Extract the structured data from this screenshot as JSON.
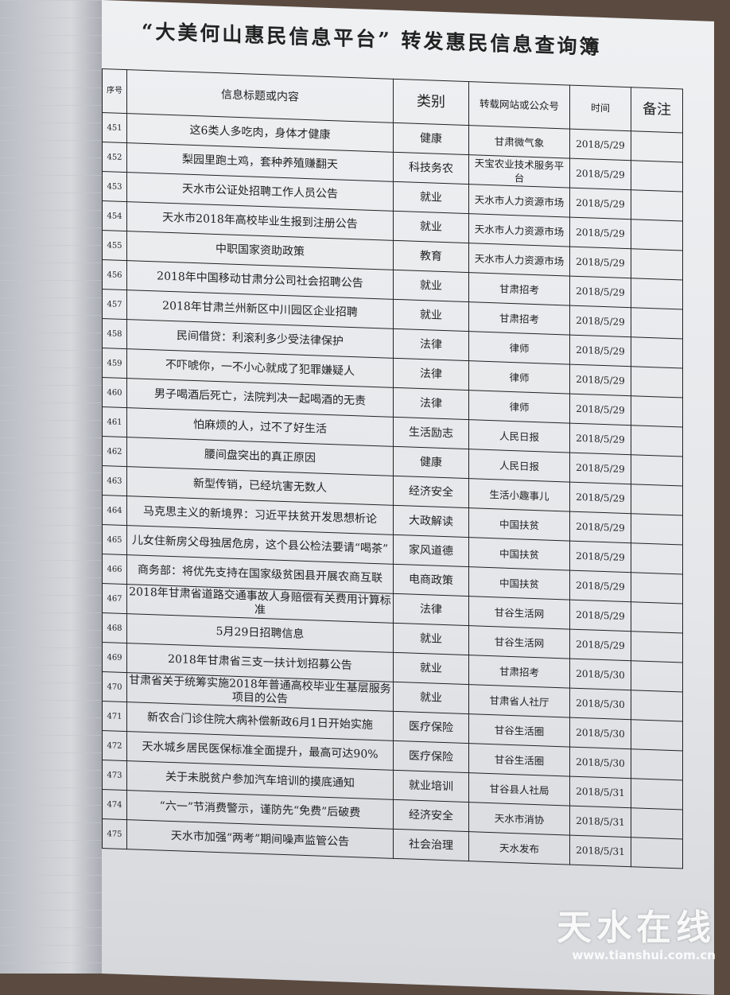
{
  "title": "“大美何山惠民信息平台” 转发惠民信息查询簿",
  "headers": {
    "no": "序号",
    "title": "信息标题或内容",
    "category": "类别",
    "source": "转载网站或公众号",
    "date": "时间",
    "note": "备注"
  },
  "rows": [
    {
      "no": "451",
      "title": "这6类人多吃肉，身体才健康",
      "category": "健康",
      "source": "甘肃微气象",
      "date": "2018/5/29",
      "note": ""
    },
    {
      "no": "452",
      "title": "梨园里跑土鸡，套种养殖赚翻天",
      "category": "科技务农",
      "source": "天宝农业技术服务平台",
      "date": "2018/5/29",
      "note": ""
    },
    {
      "no": "453",
      "title": "天水市公证处招聘工作人员公告",
      "category": "就业",
      "source": "天水市人力资源市场",
      "date": "2018/5/29",
      "note": ""
    },
    {
      "no": "454",
      "title": "天水市2018年高校毕业生报到注册公告",
      "category": "就业",
      "source": "天水市人力资源市场",
      "date": "2018/5/29",
      "note": ""
    },
    {
      "no": "455",
      "title": "中职国家资助政策",
      "category": "教育",
      "source": "天水市人力资源市场",
      "date": "2018/5/29",
      "note": ""
    },
    {
      "no": "456",
      "title": "2018年中国移动甘肃分公司社会招聘公告",
      "category": "就业",
      "source": "甘肃招考",
      "date": "2018/5/29",
      "note": ""
    },
    {
      "no": "457",
      "title": "2018年甘肃兰州新区中川园区企业招聘",
      "category": "就业",
      "source": "甘肃招考",
      "date": "2018/5/29",
      "note": ""
    },
    {
      "no": "458",
      "title": "民间借贷：利滚利多少受法律保护",
      "category": "法律",
      "source": "律师",
      "date": "2018/5/29",
      "note": ""
    },
    {
      "no": "459",
      "title": "不吓唬你，一不小心就成了犯罪嫌疑人",
      "category": "法律",
      "source": "律师",
      "date": "2018/5/29",
      "note": ""
    },
    {
      "no": "460",
      "title": "男子喝酒后死亡，法院判决一起喝酒的无责",
      "category": "法律",
      "source": "律师",
      "date": "2018/5/29",
      "note": ""
    },
    {
      "no": "461",
      "title": "怕麻烦的人，过不了好生活",
      "category": "生活励志",
      "source": "人民日报",
      "date": "2018/5/29",
      "note": ""
    },
    {
      "no": "462",
      "title": "腰间盘突出的真正原因",
      "category": "健康",
      "source": "人民日报",
      "date": "2018/5/29",
      "note": ""
    },
    {
      "no": "463",
      "title": "新型传销，已经坑害无数人",
      "category": "经济安全",
      "source": "生活小趣事儿",
      "date": "2018/5/29",
      "note": ""
    },
    {
      "no": "464",
      "title": "马克思主义的新境界：习近平扶贫开发思想析论",
      "category": "大政解读",
      "source": "中国扶贫",
      "date": "2018/5/29",
      "note": ""
    },
    {
      "no": "465",
      "title": "儿女住新房父母独居危房，这个县公检法要请“喝茶”",
      "category": "家风道德",
      "source": "中国扶贫",
      "date": "2018/5/29",
      "note": ""
    },
    {
      "no": "466",
      "title": "商务部：将优先支持在国家级贫困县开展农商互联",
      "category": "电商政策",
      "source": "中国扶贫",
      "date": "2018/5/29",
      "note": ""
    },
    {
      "no": "467",
      "title": "2018年甘肃省道路交通事故人身赔偿有关费用计算标准",
      "category": "法律",
      "source": "甘谷生活网",
      "date": "2018/5/29",
      "note": ""
    },
    {
      "no": "468",
      "title": "5月29日招聘信息",
      "category": "就业",
      "source": "甘谷生活网",
      "date": "2018/5/29",
      "note": ""
    },
    {
      "no": "469",
      "title": "2018年甘肃省三支一扶计划招募公告",
      "category": "就业",
      "source": "甘肃招考",
      "date": "2018/5/30",
      "note": ""
    },
    {
      "no": "470",
      "title": "甘肃省关于统筹实施2018年普通高校毕业生基层服务项目的公告",
      "category": "就业",
      "source": "甘肃省人社厅",
      "date": "2018/5/30",
      "note": ""
    },
    {
      "no": "471",
      "title": "新农合门诊住院大病补偿新政6月1日开始实施",
      "category": "医疗保险",
      "source": "甘谷生活圈",
      "date": "2018/5/30",
      "note": ""
    },
    {
      "no": "472",
      "title": "天水城乡居民医保标准全面提升，最高可达90%",
      "category": "医疗保险",
      "source": "甘谷生活圈",
      "date": "2018/5/30",
      "note": ""
    },
    {
      "no": "473",
      "title": "关于未脱贫户参加汽车培训的摸底通知",
      "category": "就业培训",
      "source": "甘谷县人社局",
      "date": "2018/5/31",
      "note": ""
    },
    {
      "no": "474",
      "title": "“六一”节消费警示，谨防先“免费”后破费",
      "category": "经济安全",
      "source": "天水市消协",
      "date": "2018/5/31",
      "note": ""
    },
    {
      "no": "475",
      "title": "天水市加强“两考”期间噪声监管公告",
      "category": "社会治理",
      "source": "天水发布",
      "date": "2018/5/31",
      "note": ""
    }
  ],
  "watermark": {
    "logo": "天水在线",
    "url": "www.tianshui.com.cn"
  }
}
